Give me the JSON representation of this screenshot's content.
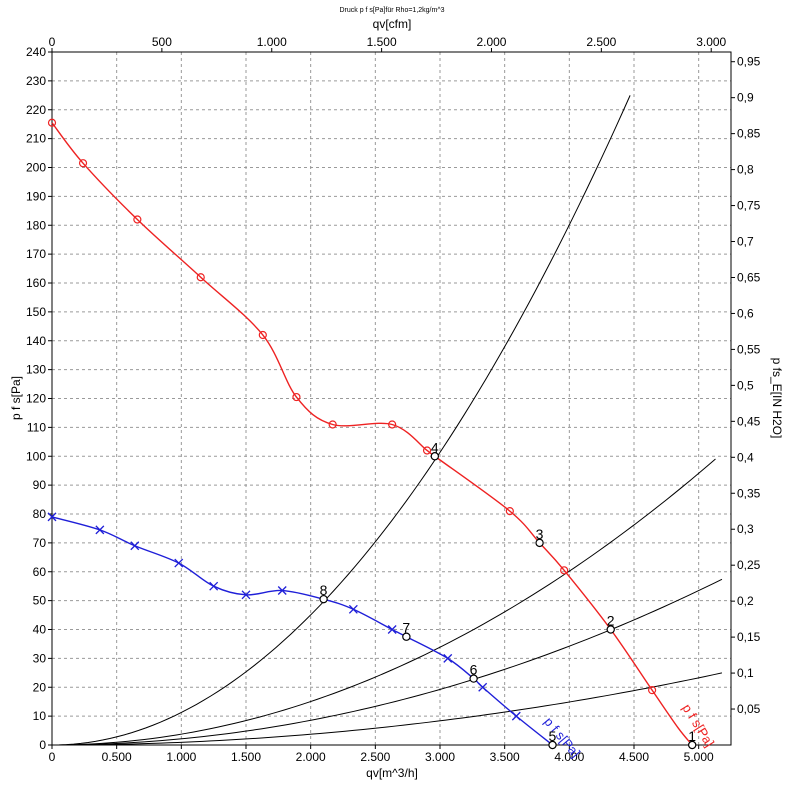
{
  "chart_data": {
    "type": "line",
    "title": "Druck p f s[Pa]für Rho=1,2kg/m^3",
    "xlabel": "qv[m^3/h]",
    "x2label": "qv[cfm]",
    "ylabel": "p f s[Pa]",
    "y2label": "p fs_E[IN H2O]",
    "xlim": [
      0,
      5250
    ],
    "ylim": [
      0,
      240
    ],
    "x2lim": [
      0,
      3090
    ],
    "y2lim": [
      0,
      0.9635
    ],
    "grid": true,
    "x_ticks": [
      {
        "value": 0,
        "label": "0"
      },
      {
        "value": 500,
        "label": "0.500"
      },
      {
        "value": 1000,
        "label": "1.000"
      },
      {
        "value": 1500,
        "label": "1.500"
      },
      {
        "value": 2000,
        "label": "2.000"
      },
      {
        "value": 2500,
        "label": "2.500"
      },
      {
        "value": 3000,
        "label": "3.000"
      },
      {
        "value": 3500,
        "label": "3.500"
      },
      {
        "value": 4000,
        "label": "4.000"
      },
      {
        "value": 4500,
        "label": "4.500"
      },
      {
        "value": 5000,
        "label": "5.000"
      }
    ],
    "x2_ticks": [
      {
        "value": 0,
        "label": "0"
      },
      {
        "value": 500,
        "label": "500"
      },
      {
        "value": 1000,
        "label": "1.000"
      },
      {
        "value": 1500,
        "label": "1.500"
      },
      {
        "value": 2000,
        "label": "2.000"
      },
      {
        "value": 2500,
        "label": "2.500"
      },
      {
        "value": 3000,
        "label": "3.000"
      }
    ],
    "y_ticks": [
      0,
      10,
      20,
      30,
      40,
      50,
      60,
      70,
      80,
      90,
      100,
      110,
      120,
      130,
      140,
      150,
      160,
      170,
      180,
      190,
      200,
      210,
      220,
      230,
      240
    ],
    "y2_ticks": [
      {
        "value": 0.05,
        "label": "0,05"
      },
      {
        "value": 0.1,
        "label": "0,1"
      },
      {
        "value": 0.15,
        "label": "0,15"
      },
      {
        "value": 0.2,
        "label": "0,2"
      },
      {
        "value": 0.25,
        "label": "0,25"
      },
      {
        "value": 0.3,
        "label": "0,3"
      },
      {
        "value": 0.35,
        "label": "0,35"
      },
      {
        "value": 0.4,
        "label": "0,4"
      },
      {
        "value": 0.45,
        "label": "0,45"
      },
      {
        "value": 0.5,
        "label": "0,5"
      },
      {
        "value": 0.55,
        "label": "0,55"
      },
      {
        "value": 0.6,
        "label": "0,6"
      },
      {
        "value": 0.65,
        "label": "0,65"
      },
      {
        "value": 0.7,
        "label": "0,7"
      },
      {
        "value": 0.75,
        "label": "0,75"
      },
      {
        "value": 0.8,
        "label": "0,8"
      },
      {
        "value": 0.85,
        "label": "0,85"
      },
      {
        "value": 0.9,
        "label": "0,9"
      },
      {
        "value": 0.95,
        "label": "0,95"
      }
    ],
    "series": [
      {
        "name": "p f s[Pa]",
        "color": "#ee2222",
        "marker": "circle",
        "x": [
          0,
          240,
          660,
          1150,
          1630,
          1890,
          2170,
          2630,
          2900,
          2960,
          3540,
          3770,
          3960,
          4320,
          4640,
          4840,
          4950
        ],
        "y": [
          215.5,
          201.5,
          182,
          162,
          142,
          120.5,
          111,
          111,
          102,
          100,
          81,
          70,
          60.5,
          40,
          19,
          6,
          0
        ],
        "markers_x": [
          0,
          240,
          660,
          1150,
          1630,
          1890,
          2170,
          2630,
          2900,
          3540,
          3960,
          4640
        ],
        "markers_y": [
          215.5,
          201.5,
          182,
          162,
          142,
          120.5,
          111,
          111,
          102,
          81,
          60.5,
          19
        ]
      },
      {
        "name": "p f s[Pa]",
        "color": "#1f1fd8",
        "marker": "x",
        "x": [
          0,
          370,
          640,
          980,
          1250,
          1500,
          1780,
          2100,
          2330,
          2630,
          2740,
          3060,
          3260,
          3330,
          3590,
          3870
        ],
        "y": [
          79,
          74.5,
          69,
          63,
          55,
          52,
          53.5,
          50.5,
          47,
          40,
          37.5,
          30,
          23,
          20,
          10,
          0
        ],
        "markers_x": [
          0,
          370,
          640,
          980,
          1250,
          1500,
          1780,
          2330,
          2630,
          3060,
          3330,
          3590
        ],
        "markers_y": [
          79,
          74.5,
          69,
          63,
          55,
          52,
          53.5,
          47,
          40,
          30,
          20,
          10
        ]
      },
      {
        "name": "",
        "color": "#000000",
        "type": "system_curve",
        "k": 11.26,
        "x_max": 4470
      },
      {
        "name": "",
        "color": "#000000",
        "type": "system_curve",
        "k": 3.763,
        "x_max": 5130
      },
      {
        "name": "",
        "color": "#000000",
        "type": "system_curve",
        "k": 2.139,
        "x_max": 5180
      },
      {
        "name": "",
        "color": "#000000",
        "type": "system_curve",
        "k": 0.9306,
        "x_max": 5180
      }
    ],
    "operating_points": [
      {
        "label": "1",
        "x": 4950,
        "y": 0
      },
      {
        "label": "2",
        "x": 4320,
        "y": 40
      },
      {
        "label": "3",
        "x": 3770,
        "y": 70
      },
      {
        "label": "4",
        "x": 2960,
        "y": 100
      },
      {
        "label": "5",
        "x": 3870,
        "y": 0
      },
      {
        "label": "6",
        "x": 3260,
        "y": 23
      },
      {
        "label": "7",
        "x": 2740,
        "y": 37.5
      },
      {
        "label": "8",
        "x": 2100,
        "y": 50.5
      }
    ],
    "series_labels": [
      {
        "text": "p f s[Pa]",
        "series": 0
      },
      {
        "text": "p f s[Pa]",
        "series": 1
      }
    ]
  }
}
